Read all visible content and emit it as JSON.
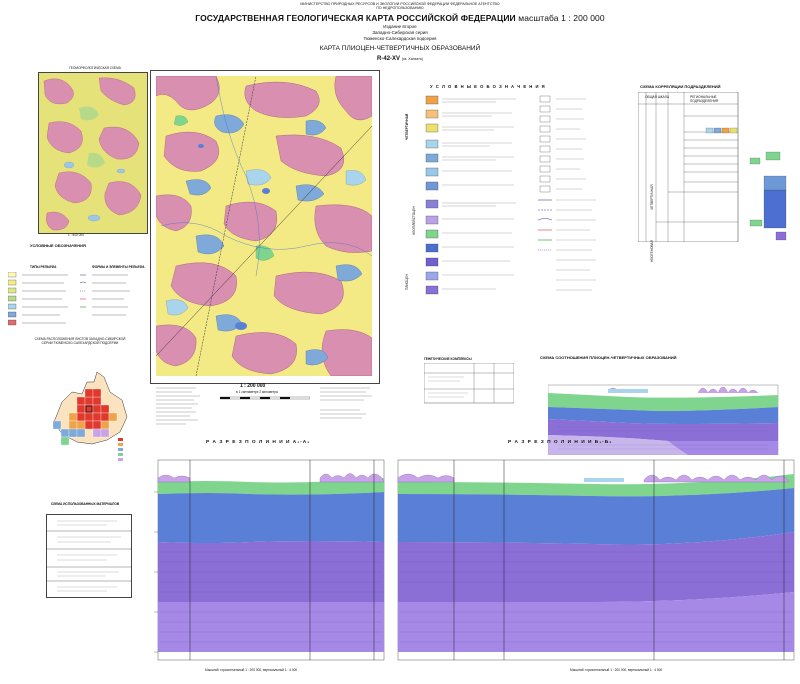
{
  "header": {
    "ministry": "МИНИСТЕРСТВО ПРИРОДНЫХ РЕСУРСОВ И ЭКОЛОГИИ РОССИЙСКОЙ ФЕДЕРАЦИИ ФЕДЕРАЛЬНОЕ АГЕНТСТВО ПО НЕДРОПОЛЬЗОВАНИЮ",
    "title": "ГОСУДАРСТВЕННАЯ ГЕОЛОГИЧЕСКАЯ КАРТА РОССИЙСКОЙ ФЕДЕРАЦИИ",
    "scale": "масштаба 1 : 200 000",
    "edition": "Издание второе",
    "series": "Западно-Сибирская серия",
    "subseries": "Тюменско-Салехардская подсерия",
    "map_title": "КАРТА ПЛИОЦЕН-ЧЕТВЕРТИЧНЫХ ОБРАЗОВАНИЙ",
    "sheet": "R-42-XV",
    "sheet_note": "(оз. Халхато)"
  },
  "inset_geomorph": {
    "title": "ГЕОМОРФОЛОГИЧЕСКАЯ СХЕМА",
    "scale": "1 : 500 000",
    "legend_title": "УСЛОВНЫЕ ОБОЗНАЧЕНИЯ",
    "relief_types": "ТИПЫ РЕЛЬЕФА",
    "relief_forms": "ФОРМЫ И ЭЛЕМЕНТЫ РЕЛЬЕФА"
  },
  "inset_sheets": {
    "title": "СХЕМА РАСПОЛОЖЕНИЯ ЛИСТОВ ЗАПАДНО-СИБИРСКОЙ СЕРИИ ТЮМЕНСКО-САЛЕХАРДСКОЙ ПОДСЕРИИ"
  },
  "inset_materials": {
    "title": "СХЕМА ИСПОЛЬЗОВАННЫХ МАТЕРИАЛОВ"
  },
  "main_map": {
    "scale_label": "1 : 200 000",
    "scale_note": "в 1 сантиметре 2 километра"
  },
  "legend": {
    "title": "У С Л О В Н Ы Е   О Б О З Н А Ч Е Н И Я",
    "column_labels": [
      "ЧЕТВЕРТИЧНАЯ",
      "НЕОПЛЕЙСТОЦЕН",
      "ПЛИОЦЕН"
    ]
  },
  "correlation": {
    "title": "СХЕМА КОРРЕЛЯЦИИ ПОДРАЗДЕЛЕНИЙ",
    "col_general": "ОБЩАЯ ШКАЛА",
    "col_regional": "РЕГИОНАЛЬНЫЕ ПОДРАЗДЕЛЕНИЯ",
    "period_quaternary": "ЧЕТВЕРТИЧНАЯ",
    "period_neogene": "НЕОГЕНОВАЯ"
  },
  "genesis": {
    "title": "ГЕНЕТИЧЕСКИЕ КОМПЛЕКСЫ"
  },
  "relations": {
    "title": "СХЕМА СООТНОШЕНИЯ ПЛИОЦЕН-ЧЕТВЕРТИЧНЫХ ОБРАЗОВАНИЙ"
  },
  "sections": {
    "a_title": "Р А З Р Е З   П О   Л И Н И И   А₁-А₂",
    "b_title": "Р А З Р Е З   П О   Л И Н И И   Б₁-Б₂",
    "a_scale": "Масштаб: горизонтальный 1 : 200 000, вертикальный 1 : 4 000",
    "b_scale": "Масштаб: горизонтальный 1 : 200 000, вертикальный 1 : 4 000"
  },
  "colors": {
    "yellow": "#f3ea86",
    "pink": "#d98fb0",
    "blue": "#7ea9d9",
    "lightblue": "#a9d4ec",
    "green": "#7fd58e",
    "violet": "#8b6fd6",
    "deepblue": "#4d6fd1",
    "red": "#e0382c",
    "orange": "#f0a24a"
  }
}
